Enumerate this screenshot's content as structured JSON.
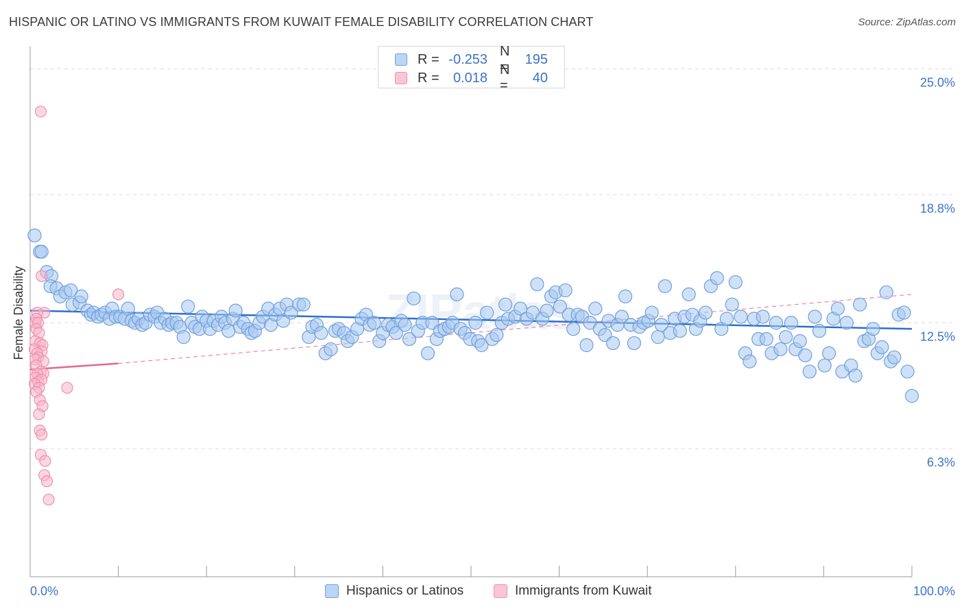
{
  "title": "HISPANIC OR LATINO VS IMMIGRANTS FROM KUWAIT FEMALE DISABILITY CORRELATION CHART",
  "source": "Source: ZipAtlas.com",
  "watermark": "ZIPatlas",
  "legend_top": {
    "rows": [
      {
        "r_label": "R =",
        "r_value": "-0.253",
        "n_label": "N =",
        "n_value": "195"
      },
      {
        "r_label": "R =",
        "r_value": "0.018",
        "n_label": "N =",
        "n_value": "40"
      }
    ]
  },
  "legend_bottom": [
    "Hispanics or Latinos",
    "Immigrants from Kuwait"
  ],
  "colors": {
    "blue_fill": "#a8c8f0",
    "blue_stroke": "#6f9fdc",
    "blue_line": "#2a6fcc",
    "pink_fill": "#f7b6c9",
    "pink_stroke": "#ef8fae",
    "pink_line": "#e8648e",
    "tick_label": "#3b73c8",
    "grid": "#dcdcdc"
  },
  "chart_data": {
    "type": "scatter",
    "title": "HISPANIC OR LATINO VS IMMIGRANTS FROM KUWAIT FEMALE DISABILITY CORRELATION CHART",
    "xlabel": "",
    "ylabel": "Female Disability",
    "xlim": [
      0,
      100
    ],
    "ylim": [
      0,
      26.3
    ],
    "x_tick_labels": [
      {
        "value": 0,
        "label": "0.0%"
      },
      {
        "value": 100,
        "label": "100.0%"
      }
    ],
    "y_ticks": [
      {
        "value": 6.3,
        "label": "6.3%"
      },
      {
        "value": 12.5,
        "label": "12.5%"
      },
      {
        "value": 18.8,
        "label": "18.8%"
      },
      {
        "value": 25.0,
        "label": "25.0%"
      }
    ],
    "grid": true,
    "legend_position": "top-center",
    "series": [
      {
        "name": "Hispanics or Latinos",
        "r": -0.253,
        "n": 195,
        "trend": {
          "x": [
            0,
            100
          ],
          "y": [
            13.1,
            12.2
          ],
          "dashed_extension": false
        },
        "points": [
          [
            0.5,
            16.8
          ],
          [
            1.1,
            16.0
          ],
          [
            1.3,
            16.0
          ],
          [
            1.9,
            15.0
          ],
          [
            2.4,
            14.8
          ],
          [
            2.3,
            14.3
          ],
          [
            3.0,
            14.2
          ],
          [
            3.4,
            13.8
          ],
          [
            4.0,
            14.0
          ],
          [
            4.6,
            14.1
          ],
          [
            4.8,
            13.4
          ],
          [
            5.6,
            13.5
          ],
          [
            5.8,
            13.8
          ],
          [
            6.5,
            13.1
          ],
          [
            6.9,
            12.9
          ],
          [
            7.2,
            13.0
          ],
          [
            7.7,
            12.8
          ],
          [
            8.1,
            12.9
          ],
          [
            8.5,
            13.0
          ],
          [
            9.0,
            12.7
          ],
          [
            9.3,
            13.2
          ],
          [
            9.7,
            12.8
          ],
          [
            10.2,
            12.8
          ],
          [
            10.7,
            12.7
          ],
          [
            11.1,
            13.2
          ],
          [
            11.5,
            12.6
          ],
          [
            11.9,
            12.5
          ],
          [
            12.3,
            12.7
          ],
          [
            12.7,
            12.4
          ],
          [
            13.1,
            12.5
          ],
          [
            13.6,
            12.9
          ],
          [
            14.1,
            12.8
          ],
          [
            14.4,
            13.0
          ],
          [
            14.8,
            12.5
          ],
          [
            15.3,
            12.7
          ],
          [
            15.7,
            12.4
          ],
          [
            16.1,
            12.5
          ],
          [
            16.6,
            12.5
          ],
          [
            17.0,
            12.3
          ],
          [
            17.4,
            11.8
          ],
          [
            17.9,
            13.3
          ],
          [
            18.3,
            12.5
          ],
          [
            18.7,
            12.3
          ],
          [
            19.2,
            12.2
          ],
          [
            19.5,
            12.8
          ],
          [
            20.0,
            12.6
          ],
          [
            20.4,
            12.2
          ],
          [
            20.8,
            12.6
          ],
          [
            21.3,
            12.4
          ],
          [
            21.7,
            12.8
          ],
          [
            22.1,
            12.5
          ],
          [
            22.5,
            12.1
          ],
          [
            23.0,
            12.7
          ],
          [
            23.3,
            13.1
          ],
          [
            23.8,
            12.3
          ],
          [
            24.2,
            12.5
          ],
          [
            24.7,
            12.2
          ],
          [
            25.1,
            12.0
          ],
          [
            25.5,
            12.1
          ],
          [
            26.0,
            12.5
          ],
          [
            26.4,
            12.8
          ],
          [
            27.0,
            13.2
          ],
          [
            27.3,
            12.4
          ],
          [
            27.8,
            12.9
          ],
          [
            28.3,
            13.2
          ],
          [
            28.7,
            12.6
          ],
          [
            29.1,
            13.4
          ],
          [
            29.6,
            13.0
          ],
          [
            30.5,
            13.4
          ],
          [
            31.0,
            13.4
          ],
          [
            31.6,
            11.8
          ],
          [
            32.0,
            12.3
          ],
          [
            32.5,
            12.4
          ],
          [
            33.0,
            12.0
          ],
          [
            33.5,
            11.0
          ],
          [
            34.1,
            11.2
          ],
          [
            34.6,
            12.1
          ],
          [
            35.0,
            12.2
          ],
          [
            35.6,
            12.0
          ],
          [
            36.0,
            11.6
          ],
          [
            36.5,
            11.8
          ],
          [
            37.1,
            12.2
          ],
          [
            37.6,
            12.7
          ],
          [
            38.1,
            12.9
          ],
          [
            38.5,
            12.4
          ],
          [
            39.0,
            12.5
          ],
          [
            39.6,
            11.6
          ],
          [
            40.0,
            12.0
          ],
          [
            40.6,
            12.4
          ],
          [
            41.1,
            12.3
          ],
          [
            41.5,
            12.0
          ],
          [
            42.1,
            12.6
          ],
          [
            42.5,
            12.4
          ],
          [
            43.0,
            11.7
          ],
          [
            43.5,
            13.7
          ],
          [
            44.0,
            12.1
          ],
          [
            44.5,
            12.5
          ],
          [
            45.1,
            11.0
          ],
          [
            45.6,
            12.5
          ],
          [
            46.1,
            11.7
          ],
          [
            46.5,
            12.1
          ],
          [
            47.0,
            12.2
          ],
          [
            47.5,
            12.3
          ],
          [
            47.9,
            12.5
          ],
          [
            48.4,
            13.9
          ],
          [
            48.8,
            12.2
          ],
          [
            49.3,
            12.0
          ],
          [
            49.9,
            11.7
          ],
          [
            50.5,
            12.5
          ],
          [
            50.8,
            11.6
          ],
          [
            51.2,
            11.4
          ],
          [
            51.8,
            13.0
          ],
          [
            52.4,
            11.7
          ],
          [
            52.9,
            11.9
          ],
          [
            53.5,
            12.5
          ],
          [
            53.9,
            13.4
          ],
          [
            54.2,
            12.7
          ],
          [
            55.0,
            12.8
          ],
          [
            55.6,
            13.2
          ],
          [
            56.3,
            12.7
          ],
          [
            57.0,
            13.0
          ],
          [
            57.5,
            14.4
          ],
          [
            58.1,
            12.7
          ],
          [
            58.6,
            13.1
          ],
          [
            59.1,
            13.8
          ],
          [
            59.6,
            14.0
          ],
          [
            60.1,
            13.3
          ],
          [
            60.7,
            14.1
          ],
          [
            61.1,
            12.9
          ],
          [
            61.6,
            12.2
          ],
          [
            62.1,
            12.9
          ],
          [
            62.6,
            12.8
          ],
          [
            63.1,
            11.4
          ],
          [
            63.5,
            12.5
          ],
          [
            64.1,
            13.2
          ],
          [
            64.6,
            12.2
          ],
          [
            65.2,
            11.9
          ],
          [
            65.6,
            12.6
          ],
          [
            66.1,
            11.5
          ],
          [
            66.6,
            12.4
          ],
          [
            67.1,
            12.8
          ],
          [
            67.5,
            13.8
          ],
          [
            68.1,
            12.4
          ],
          [
            68.5,
            11.5
          ],
          [
            69.1,
            12.3
          ],
          [
            69.6,
            12.5
          ],
          [
            70.1,
            12.6
          ],
          [
            70.5,
            13.0
          ],
          [
            71.2,
            11.8
          ],
          [
            71.6,
            12.4
          ],
          [
            72.0,
            14.3
          ],
          [
            72.6,
            12.0
          ],
          [
            73.1,
            12.7
          ],
          [
            73.7,
            12.1
          ],
          [
            74.2,
            12.8
          ],
          [
            74.7,
            13.9
          ],
          [
            75.1,
            12.9
          ],
          [
            75.5,
            12.2
          ],
          [
            76.0,
            12.6
          ],
          [
            76.6,
            13.0
          ],
          [
            77.2,
            14.3
          ],
          [
            77.9,
            14.7
          ],
          [
            78.4,
            12.2
          ],
          [
            79.0,
            12.7
          ],
          [
            79.6,
            13.4
          ],
          [
            80.0,
            14.5
          ],
          [
            80.6,
            12.8
          ],
          [
            81.1,
            11.0
          ],
          [
            81.6,
            10.6
          ],
          [
            82.1,
            12.7
          ],
          [
            82.6,
            11.7
          ],
          [
            83.1,
            12.8
          ],
          [
            83.5,
            11.7
          ],
          [
            84.1,
            11.0
          ],
          [
            84.6,
            12.5
          ],
          [
            85.1,
            11.2
          ],
          [
            85.7,
            11.8
          ],
          [
            86.3,
            12.5
          ],
          [
            86.8,
            11.2
          ],
          [
            87.3,
            11.6
          ],
          [
            87.9,
            10.9
          ],
          [
            88.4,
            10.1
          ],
          [
            89.0,
            12.8
          ],
          [
            89.5,
            12.1
          ],
          [
            90.1,
            10.4
          ],
          [
            90.6,
            11.0
          ],
          [
            91.1,
            12.7
          ],
          [
            91.6,
            13.2
          ],
          [
            92.1,
            10.1
          ],
          [
            92.6,
            12.5
          ],
          [
            93.1,
            10.4
          ],
          [
            93.6,
            9.9
          ],
          [
            94.1,
            13.4
          ],
          [
            94.6,
            11.6
          ],
          [
            95.1,
            11.7
          ],
          [
            95.6,
            12.2
          ],
          [
            96.1,
            11.0
          ],
          [
            96.6,
            11.3
          ],
          [
            97.1,
            14.0
          ],
          [
            97.6,
            10.6
          ],
          [
            98.0,
            10.8
          ],
          [
            98.5,
            12.9
          ],
          [
            99.1,
            13.0
          ],
          [
            99.5,
            10.1
          ],
          [
            100.0,
            8.9
          ]
        ]
      },
      {
        "name": "Immigrants from Kuwait",
        "r": 0.018,
        "n": 40,
        "trend": {
          "x": [
            0,
            10
          ],
          "y": [
            10.2,
            10.5
          ],
          "dashed_extension": true,
          "extension_to": [
            100,
            13.9
          ]
        },
        "points": [
          [
            1.2,
            22.9
          ],
          [
            1.3,
            14.8
          ],
          [
            1.6,
            13.0
          ],
          [
            0.8,
            13.0
          ],
          [
            0.7,
            12.7
          ],
          [
            0.6,
            12.5
          ],
          [
            0.9,
            12.5
          ],
          [
            0.7,
            12.2
          ],
          [
            1.0,
            12.0
          ],
          [
            0.6,
            11.6
          ],
          [
            1.1,
            11.5
          ],
          [
            1.4,
            11.4
          ],
          [
            0.5,
            11.2
          ],
          [
            1.3,
            11.1
          ],
          [
            0.8,
            11.0
          ],
          [
            0.9,
            10.8
          ],
          [
            0.6,
            10.7
          ],
          [
            1.5,
            10.6
          ],
          [
            0.7,
            10.4
          ],
          [
            1.2,
            10.1
          ],
          [
            1.5,
            10.0
          ],
          [
            0.8,
            10.0
          ],
          [
            0.6,
            9.8
          ],
          [
            0.9,
            9.6
          ],
          [
            1.3,
            9.7
          ],
          [
            0.5,
            9.5
          ],
          [
            1.0,
            9.3
          ],
          [
            0.7,
            9.1
          ],
          [
            1.1,
            8.7
          ],
          [
            1.4,
            8.4
          ],
          [
            1.0,
            8.0
          ],
          [
            1.1,
            7.2
          ],
          [
            1.3,
            7.0
          ],
          [
            1.2,
            6.0
          ],
          [
            1.7,
            5.7
          ],
          [
            1.6,
            5.0
          ],
          [
            1.9,
            4.7
          ],
          [
            2.1,
            3.8
          ],
          [
            4.2,
            9.3
          ],
          [
            10.0,
            13.9
          ]
        ]
      }
    ]
  }
}
